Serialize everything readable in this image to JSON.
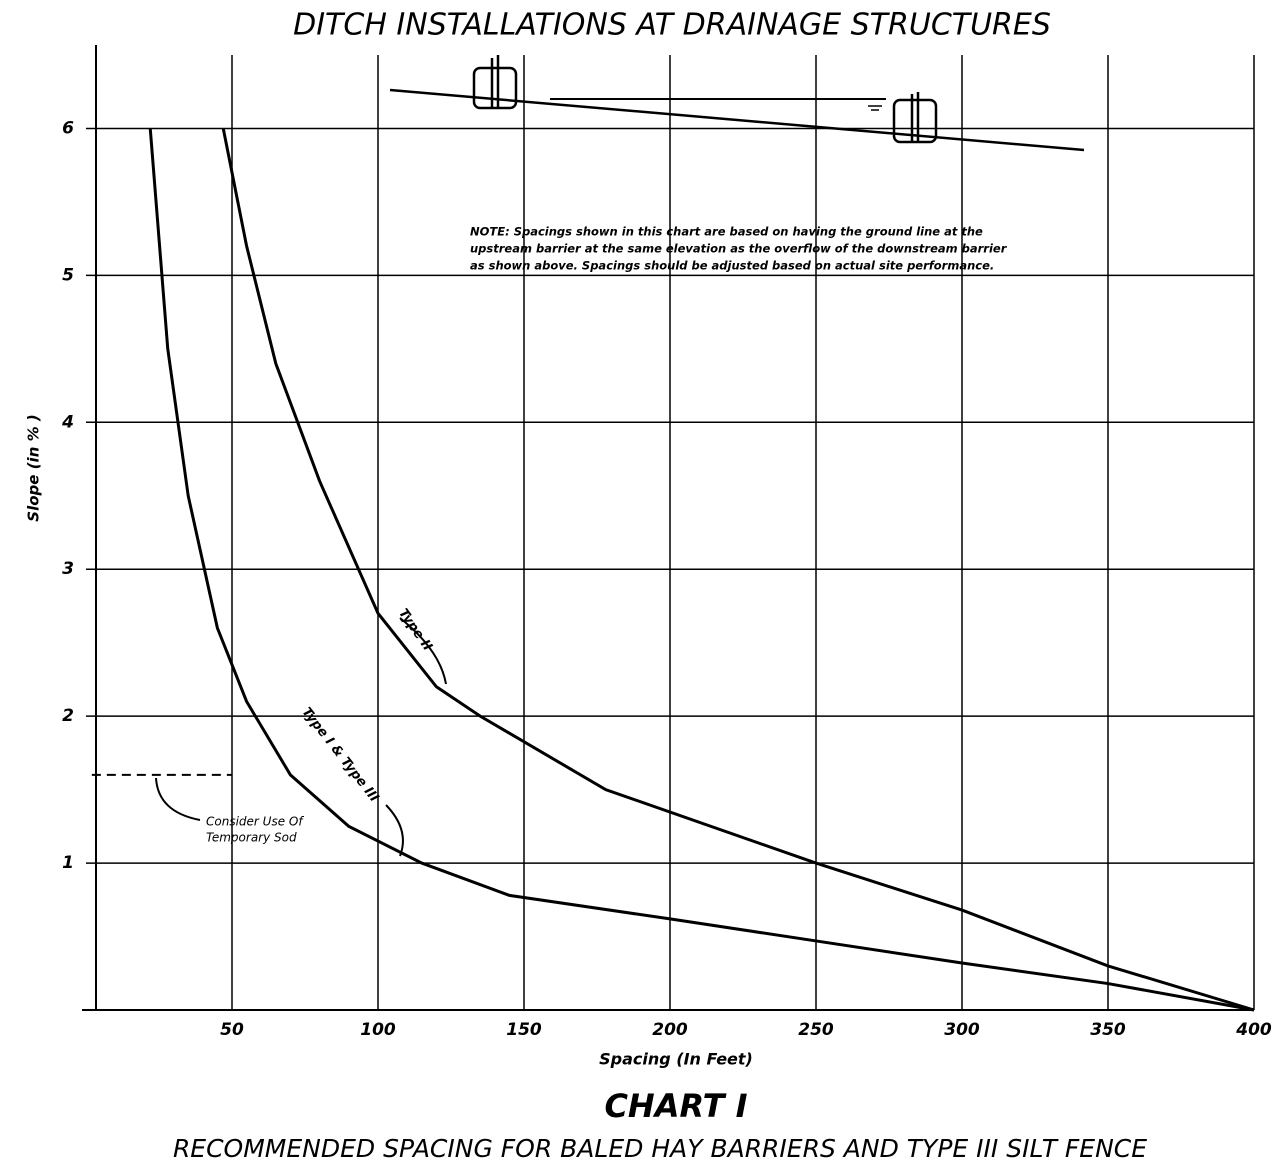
{
  "chart_data": {
    "type": "line",
    "title": "DITCH INSTALLATIONS AT DRAINAGE STRUCTURES",
    "subtitle": "CHART I",
    "caption": "RECOMMENDED SPACING FOR BALED HAY BARRIERS AND TYPE III SILT FENCE",
    "x_label": "Spacing (In Feet)",
    "y_label": "Slope (in % )",
    "note": [
      "NOTE: Spacings shown in this chart are based on having the ground line at the",
      "upstream barrier at the same elevation as the overflow of the downstream barrier",
      "as shown above. Spacings should be adjusted based on actual site performance."
    ],
    "sod_annotation": {
      "text": [
        "Consider Use Of",
        "Temporary Sod"
      ],
      "y": 1.6,
      "x": [
        2,
        50
      ]
    },
    "xlim": [
      0,
      400
    ],
    "ylim": [
      0,
      6.5
    ],
    "xticks": [
      50,
      100,
      150,
      200,
      250,
      300,
      350,
      400
    ],
    "yticks": [
      1,
      2,
      3,
      4,
      5,
      6
    ],
    "grid": true,
    "series": [
      {
        "name": "Type II",
        "color": "#000000",
        "x": [
          47,
          55,
          65,
          80,
          100,
          120,
          135,
          178,
          250,
          300,
          350,
          400
        ],
        "values": [
          6,
          5.2,
          4.4,
          3.6,
          2.7,
          2.2,
          2,
          1.5,
          1.0,
          0.68,
          0.3,
          0
        ]
      },
      {
        "name": "Type I & Type III",
        "color": "#000000",
        "x": [
          22,
          28,
          35,
          45,
          55,
          70,
          90,
          115,
          145,
          200,
          250,
          300,
          350,
          400
        ],
        "values": [
          6,
          4.5,
          3.5,
          2.6,
          2.1,
          1.6,
          1.25,
          1,
          0.78,
          0.62,
          0.47,
          0.32,
          0.18,
          0
        ]
      }
    ]
  }
}
